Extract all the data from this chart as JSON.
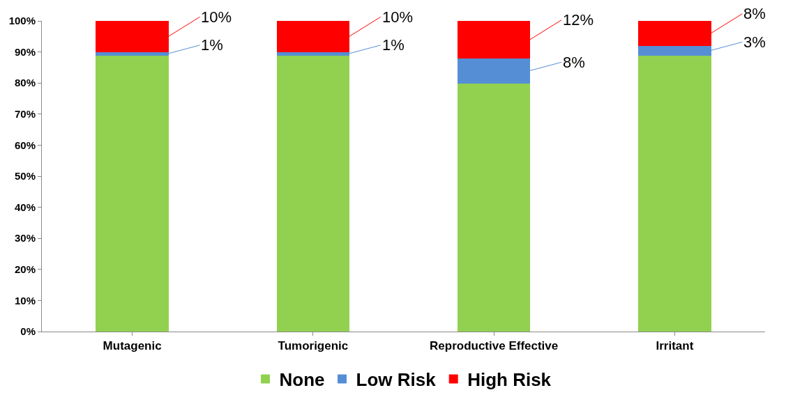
{
  "chart_data": {
    "type": "bar",
    "stacked": true,
    "categories": [
      "Mutagenic",
      "Tumorigenic",
      "Reproductive Effective",
      "Irritant"
    ],
    "series": [
      {
        "name": "None",
        "color": "#92d050",
        "values": [
          89,
          89,
          80,
          89
        ],
        "value_labels": [
          null,
          null,
          null,
          null
        ]
      },
      {
        "name": "Low Risk",
        "color": "#558ed5",
        "values": [
          1,
          1,
          8,
          3
        ],
        "value_labels": [
          "1%",
          "1%",
          "8%",
          "3%"
        ]
      },
      {
        "name": "High Risk",
        "color": "#ff0000",
        "values": [
          10,
          10,
          12,
          8
        ],
        "value_labels": [
          "10%",
          "10%",
          "12%",
          "8%"
        ]
      }
    ],
    "ylim": [
      0,
      100
    ],
    "yticks": [
      {
        "value": 0,
        "label": "0%"
      },
      {
        "value": 10,
        "label": "10%"
      },
      {
        "value": 20,
        "label": "20%"
      },
      {
        "value": 30,
        "label": "30%"
      },
      {
        "value": 40,
        "label": "40%"
      },
      {
        "value": 50,
        "label": "50%"
      },
      {
        "value": 60,
        "label": "60%"
      },
      {
        "value": 70,
        "label": "70%"
      },
      {
        "value": 80,
        "label": "80%"
      },
      {
        "value": 90,
        "label": "90%"
      },
      {
        "value": 100,
        "label": "100%"
      }
    ],
    "grid": false,
    "legend": "bottom"
  }
}
